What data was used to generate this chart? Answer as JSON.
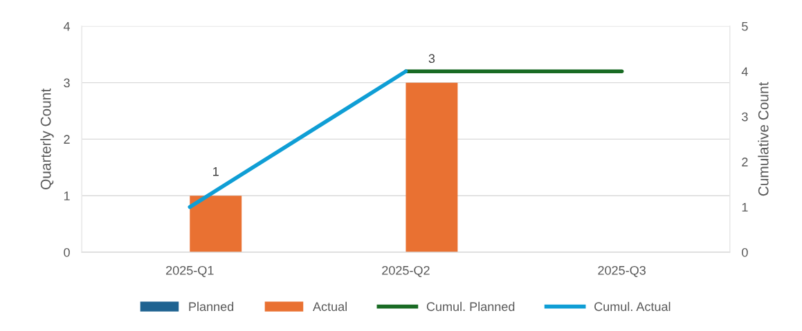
{
  "chart_data": {
    "type": "bar",
    "categories": [
      "2025-Q1",
      "2025-Q2",
      "2025-Q3"
    ],
    "ylabel": "Quarterly Count",
    "y2label": "Cumulative Count",
    "ylim": [
      0,
      4
    ],
    "yticks": [
      0,
      1,
      2,
      3,
      4
    ],
    "y2lim": [
      0,
      5
    ],
    "y2ticks": [
      0,
      1,
      2,
      3,
      4,
      5
    ],
    "grid": "y",
    "legend": "bottom",
    "series": [
      {
        "name": "Planned",
        "color": "#1f6391",
        "values": [
          null,
          null,
          null
        ]
      },
      {
        "name": "Actual",
        "color": "#e97132",
        "values": [
          1,
          3,
          null
        ],
        "value_labels": [
          "1",
          "3",
          null
        ]
      },
      {
        "name": "Cumul. Planned",
        "type": "line",
        "axis": "y2",
        "color": "#196b24",
        "values": [
          null,
          4,
          4
        ]
      },
      {
        "name": "Cumul. Actual",
        "type": "line",
        "axis": "y2",
        "color": "#0f9ed5",
        "values": [
          1,
          4,
          null
        ]
      }
    ]
  }
}
